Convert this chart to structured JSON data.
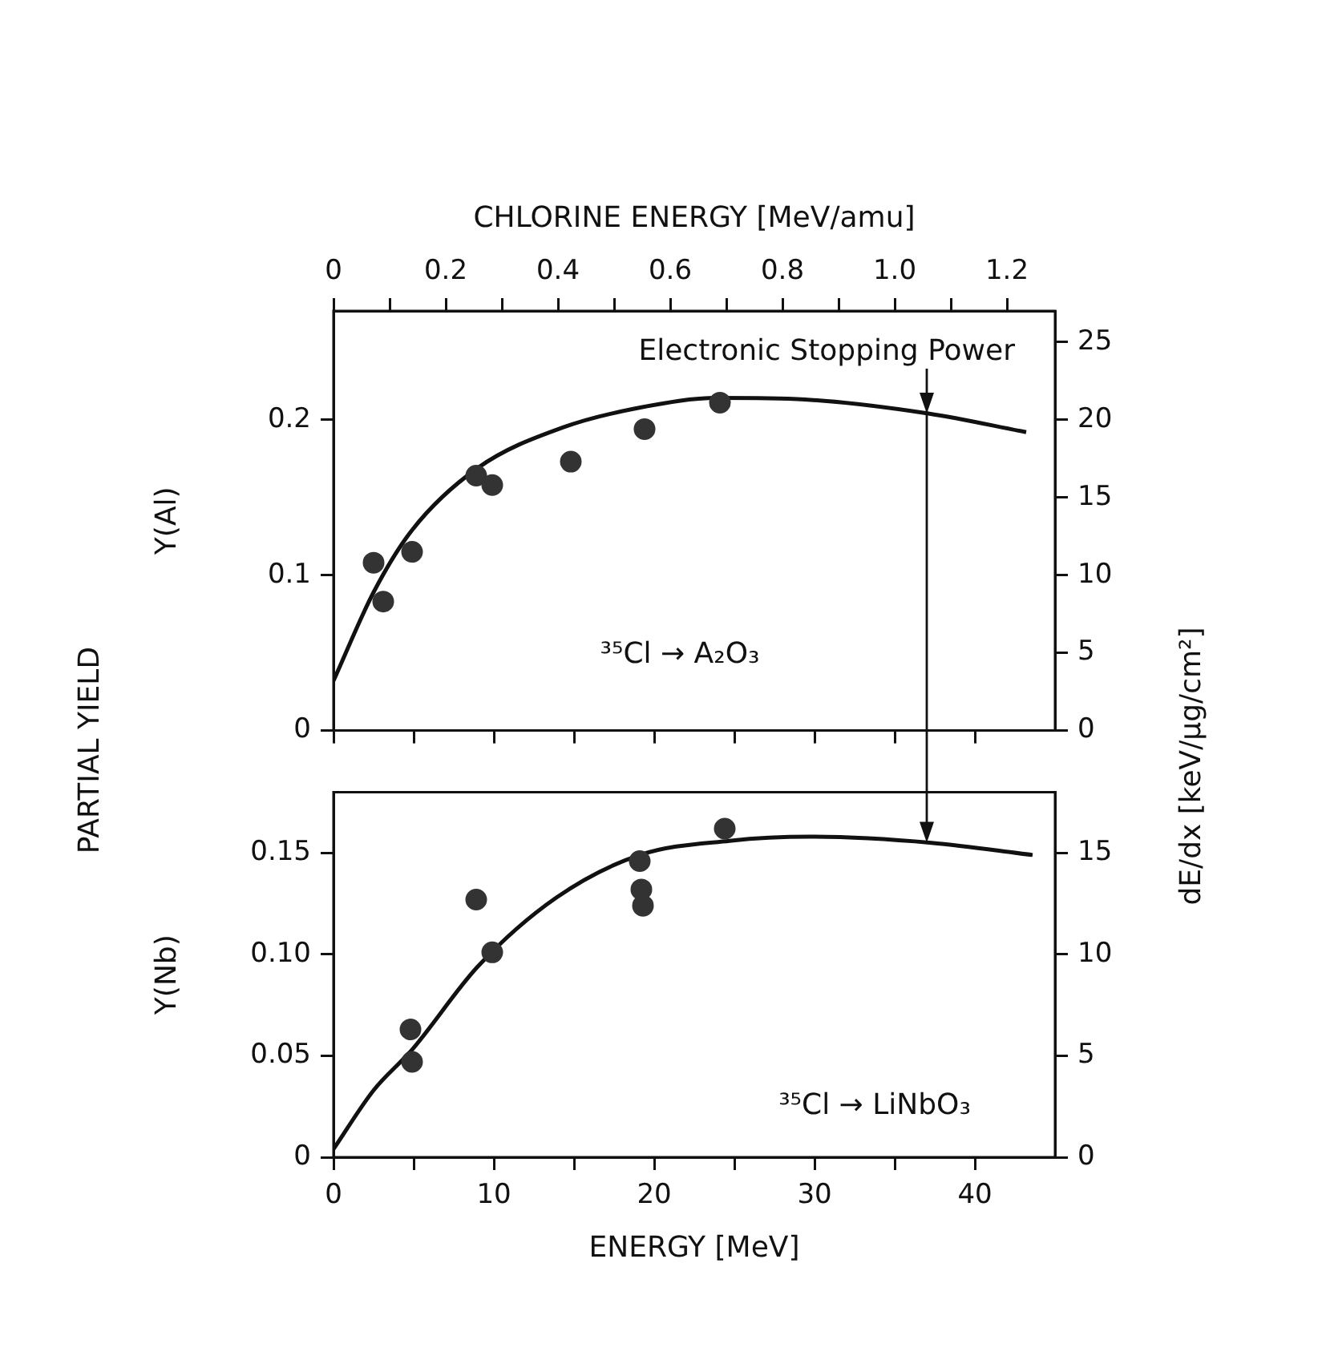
{
  "chart_data": [
    {
      "type": "scatter",
      "x2label": "CHLORINE ENERGY [MeV/amu]",
      "ylabel": "Y(Al)",
      "y2label": "dE/dx [keV/μg/cm²]",
      "annotations": [
        "PARTIAL YIELD",
        {
          "text": "Electronic Stopping Power",
          "x": 37,
          "y": 0.204
        },
        "³⁵Cl → A₂O₃"
      ],
      "xlim": [
        0,
        45
      ],
      "xticks": [
        {
          "value": 0,
          "label": null
        },
        {
          "value": 5,
          "label": null
        },
        {
          "value": 10,
          "label": null
        },
        {
          "value": 15,
          "label": null
        },
        {
          "value": 20,
          "label": null
        },
        {
          "value": 25,
          "label": null
        },
        {
          "value": 30,
          "label": null
        },
        {
          "value": 35,
          "label": null
        },
        {
          "value": 40,
          "label": null
        }
      ],
      "x2lim": [
        0,
        1.2857
      ],
      "x2ticks": [
        0,
        {
          "value": 0.1,
          "label": null
        },
        0.2,
        {
          "value": 0.3,
          "label": null
        },
        0.4,
        {
          "value": 0.5,
          "label": null
        },
        0.6,
        {
          "value": 0.7,
          "label": null
        },
        0.8,
        {
          "value": 0.9,
          "label": null
        },
        {
          "value": 1,
          "label": "1.0"
        },
        {
          "value": 1.1,
          "label": null
        },
        1.2
      ],
      "ylim": [
        0,
        0.27
      ],
      "yticks": [
        0,
        0.1,
        0.2
      ],
      "y2lim": [
        0,
        27
      ],
      "y2ticks": [
        0,
        5,
        10,
        15,
        20,
        25
      ],
      "tick_labels": "y",
      "legend": false,
      "series": [
        {
          "color": "#333333",
          "marker": "circle",
          "x": [
            2.5,
            3.1,
            4.9,
            8.9,
            9.9,
            14.8,
            19.4,
            24.1
          ],
          "values": [
            0.108,
            0.083,
            0.115,
            0.164,
            0.158,
            0.173,
            0.194,
            0.211
          ]
        },
        {
          "type": "line",
          "axis": "y2",
          "color": "#111111",
          "marker": "none",
          "x": [
            0,
            2.5,
            4.9,
            9,
            14.3,
            19.2,
            23.9,
            29.4,
            37.1,
            43.2
          ],
          "values": [
            3.2,
            8.9,
            12.9,
            16.9,
            19.5,
            20.8,
            21.4,
            21.3,
            20.4,
            19.2
          ]
        }
      ]
    },
    {
      "type": "scatter",
      "xlabel": "ENERGY [MeV]",
      "ylabel": "Y(Nb)",
      "annotations": [
        "³⁵Cl → LiNbO₃"
      ],
      "xlim": [
        0,
        45
      ],
      "xticks": [
        0,
        {
          "value": 5,
          "label": null
        },
        10,
        {
          "value": 15,
          "label": null
        },
        20,
        {
          "value": 25,
          "label": null
        },
        30,
        {
          "value": 35,
          "label": null
        },
        40
      ],
      "ylim": [
        0,
        0.18
      ],
      "yticks": [
        0,
        0.05,
        {
          "value": 0.1,
          "label": "0.10"
        },
        0.15
      ],
      "y2lim": [
        0,
        18
      ],
      "y2ticks": [
        0,
        5,
        10,
        15
      ],
      "legend": false,
      "series": [
        {
          "color": "#333333",
          "marker": "circle",
          "x": [
            4.8,
            4.9,
            8.9,
            9.9,
            19.1,
            19.2,
            19.3,
            24.4
          ],
          "values": [
            0.063,
            0.047,
            0.127,
            0.101,
            0.146,
            0.132,
            0.124,
            0.162
          ]
        },
        {
          "type": "line",
          "axis": "y2",
          "color": "#111111",
          "marker": "none",
          "x": [
            0,
            2.5,
            4.9,
            9,
            13.9,
            19.1,
            24.7,
            29.7,
            37.3,
            43.6
          ],
          "values": [
            0.4,
            3.3,
            5.3,
            9.4,
            12.8,
            14.9,
            15.6,
            15.8,
            15.5,
            14.9
          ]
        }
      ]
    }
  ]
}
